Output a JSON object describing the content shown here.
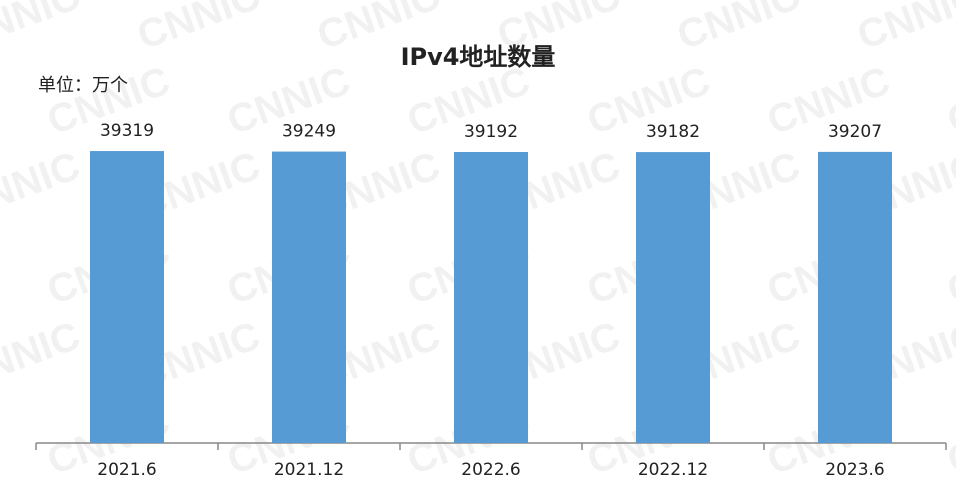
{
  "chart_data": {
    "type": "bar",
    "title": "IPv4地址数量",
    "unit_label": "单位：万个",
    "watermark": "CNNIC",
    "categories": [
      "2021.6",
      "2021.12",
      "2022.6",
      "2022.12",
      "2023.6"
    ],
    "values": [
      39319,
      39249,
      39192,
      39182,
      39207
    ],
    "color": "#579bd4",
    "ylim": [
      0,
      40000
    ]
  }
}
